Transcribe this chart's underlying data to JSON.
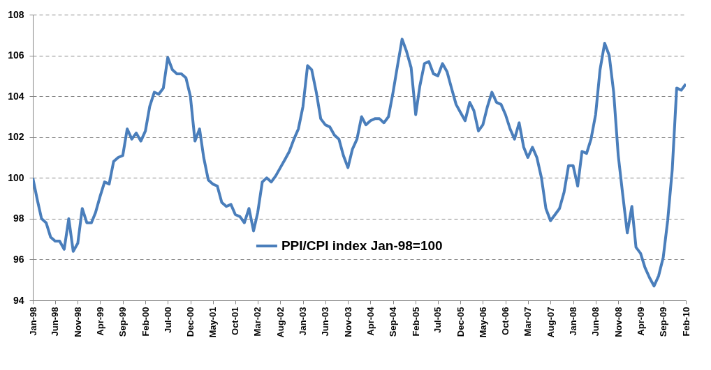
{
  "chart_data": {
    "type": "line",
    "x": [
      "1998-01",
      "1998-02",
      "1998-03",
      "1998-04",
      "1998-05",
      "1998-06",
      "1998-07",
      "1998-08",
      "1998-09",
      "1998-10",
      "1998-11",
      "1998-12",
      "1999-01",
      "1999-02",
      "1999-03",
      "1999-04",
      "1999-05",
      "1999-06",
      "1999-07",
      "1999-08",
      "1999-09",
      "1999-10",
      "1999-11",
      "1999-12",
      "2000-01",
      "2000-02",
      "2000-03",
      "2000-04",
      "2000-05",
      "2000-06",
      "2000-07",
      "2000-08",
      "2000-09",
      "2000-10",
      "2000-11",
      "2000-12",
      "2001-01",
      "2001-02",
      "2001-03",
      "2001-04",
      "2001-05",
      "2001-06",
      "2001-07",
      "2001-08",
      "2001-09",
      "2001-10",
      "2001-11",
      "2001-12",
      "2002-01",
      "2002-02",
      "2002-03",
      "2002-04",
      "2002-05",
      "2002-06",
      "2002-07",
      "2002-08",
      "2002-09",
      "2002-10",
      "2002-11",
      "2002-12",
      "2003-01",
      "2003-02",
      "2003-03",
      "2003-04",
      "2003-05",
      "2003-06",
      "2003-07",
      "2003-08",
      "2003-09",
      "2003-10",
      "2003-11",
      "2003-12",
      "2004-01",
      "2004-02",
      "2004-03",
      "2004-04",
      "2004-05",
      "2004-06",
      "2004-07",
      "2004-08",
      "2004-09",
      "2004-10",
      "2004-11",
      "2004-12",
      "2005-01",
      "2005-02",
      "2005-03",
      "2005-04",
      "2005-05",
      "2005-06",
      "2005-07",
      "2005-08",
      "2005-09",
      "2005-10",
      "2005-11",
      "2005-12",
      "2006-01",
      "2006-02",
      "2006-03",
      "2006-04",
      "2006-05",
      "2006-06",
      "2006-07",
      "2006-08",
      "2006-09",
      "2006-10",
      "2006-11",
      "2006-12",
      "2007-01",
      "2007-02",
      "2007-03",
      "2007-04",
      "2007-05",
      "2007-06",
      "2007-07",
      "2007-08",
      "2007-09",
      "2007-10",
      "2007-11",
      "2007-12",
      "2008-01",
      "2008-02",
      "2008-03",
      "2008-04",
      "2008-05",
      "2008-06",
      "2008-07",
      "2008-08",
      "2008-09",
      "2008-10",
      "2008-11",
      "2008-12",
      "2009-01",
      "2009-02",
      "2009-03",
      "2009-04",
      "2009-05",
      "2009-06",
      "2009-07",
      "2009-08",
      "2009-09",
      "2009-10",
      "2009-11",
      "2009-12",
      "2010-01",
      "2010-02"
    ],
    "series": [
      {
        "name": "PPI/CPI index Jan-98=100",
        "color": "#4a7ebb",
        "values": [
          100.0,
          98.9,
          98.0,
          97.8,
          97.1,
          96.9,
          96.9,
          96.5,
          98.0,
          96.4,
          96.8,
          98.5,
          97.8,
          97.8,
          98.3,
          99.1,
          99.8,
          99.7,
          100.8,
          101.0,
          101.1,
          102.4,
          101.9,
          102.2,
          101.8,
          102.3,
          103.5,
          104.2,
          104.1,
          104.4,
          105.9,
          105.3,
          105.1,
          105.1,
          104.9,
          104.0,
          101.8,
          102.4,
          101.0,
          99.9,
          99.7,
          99.6,
          98.8,
          98.6,
          98.7,
          98.2,
          98.1,
          97.8,
          98.5,
          97.4,
          98.3,
          99.8,
          100.0,
          99.8,
          100.1,
          100.5,
          100.9,
          101.3,
          101.9,
          102.4,
          103.5,
          105.5,
          105.3,
          104.2,
          102.9,
          102.6,
          102.5,
          102.1,
          101.9,
          101.1,
          100.5,
          101.4,
          101.9,
          103.0,
          102.6,
          102.8,
          102.9,
          102.9,
          102.7,
          103.0,
          104.2,
          105.5,
          106.8,
          106.2,
          105.4,
          103.1,
          104.5,
          105.6,
          105.7,
          105.1,
          105.0,
          105.6,
          105.2,
          104.4,
          103.6,
          103.2,
          102.8,
          103.7,
          103.3,
          102.3,
          102.6,
          103.5,
          104.2,
          103.7,
          103.6,
          103.1,
          102.4,
          101.9,
          102.7,
          101.5,
          101.0,
          101.5,
          101.0,
          100.0,
          98.5,
          97.9,
          98.2,
          98.5,
          99.3,
          100.6,
          100.6,
          99.6,
          101.3,
          101.2,
          101.9,
          103.1,
          105.3,
          106.6,
          106.0,
          104.2,
          101.1,
          99.2,
          97.3,
          98.6,
          96.6,
          96.3,
          95.6,
          95.1,
          94.7,
          95.2,
          96.1,
          97.9,
          100.4,
          104.4,
          104.3,
          104.6
        ]
      }
    ],
    "xlim": [
      "1998-01",
      "2010-02"
    ],
    "xticks": [
      {
        "value": "1998-01",
        "label": "Jan-98"
      },
      {
        "value": "1998-06",
        "label": "Jun-98"
      },
      {
        "value": "1998-11",
        "label": "Nov-98"
      },
      {
        "value": "1999-04",
        "label": "Apr-99"
      },
      {
        "value": "1999-09",
        "label": "Sep-99"
      },
      {
        "value": "2000-02",
        "label": "Feb-00"
      },
      {
        "value": "2000-07",
        "label": "Jul-00"
      },
      {
        "value": "2000-12",
        "label": "Dec-00"
      },
      {
        "value": "2001-05",
        "label": "May-01"
      },
      {
        "value": "2001-10",
        "label": "Oct-01"
      },
      {
        "value": "2002-03",
        "label": "Mar-02"
      },
      {
        "value": "2002-08",
        "label": "Aug-02"
      },
      {
        "value": "2003-01",
        "label": "Jan-03"
      },
      {
        "value": "2003-06",
        "label": "Jun-03"
      },
      {
        "value": "2003-11",
        "label": "Nov-03"
      },
      {
        "value": "2004-04",
        "label": "Apr-04"
      },
      {
        "value": "2004-09",
        "label": "Sep-04"
      },
      {
        "value": "2005-02",
        "label": "Feb-05"
      },
      {
        "value": "2005-07",
        "label": "Jul-05"
      },
      {
        "value": "2005-12",
        "label": "Dec-05"
      },
      {
        "value": "2006-05",
        "label": "May-06"
      },
      {
        "value": "2006-10",
        "label": "Oct-06"
      },
      {
        "value": "2007-03",
        "label": "Mar-07"
      },
      {
        "value": "2007-08",
        "label": "Aug-07"
      },
      {
        "value": "2008-01",
        "label": "Jan-08"
      },
      {
        "value": "2008-06",
        "label": "Jun-08"
      },
      {
        "value": "2008-11",
        "label": "Nov-08"
      },
      {
        "value": "2009-04",
        "label": "Apr-09"
      },
      {
        "value": "2009-09",
        "label": "Sep-09"
      },
      {
        "value": "2010-02",
        "label": "Feb-10"
      }
    ],
    "ylim": [
      94,
      108
    ],
    "yticks": [
      94,
      96,
      98,
      100,
      102,
      104,
      106,
      108
    ],
    "grid": "y",
    "legend": "bottom",
    "marker": "none",
    "line_style": "solid"
  }
}
